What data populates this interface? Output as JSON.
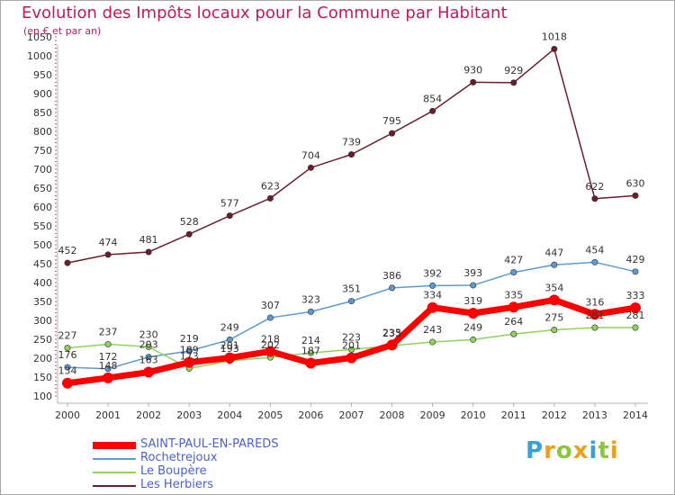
{
  "title": "Evolution des Impôts locaux pour la Commune par Habitant",
  "subtitle": "(en € et par an)",
  "logo": {
    "text": "Proxiti",
    "letters": [
      {
        "ch": "P",
        "color": "#3aa0d8"
      },
      {
        "ch": "r",
        "color": "#e8a020"
      },
      {
        "ch": "o",
        "color": "#8cc63f"
      },
      {
        "ch": "x",
        "color": "#e8a020"
      },
      {
        "ch": "i",
        "color": "#3aa0d8"
      },
      {
        "ch": "t",
        "color": "#8cc63f"
      },
      {
        "ch": "i",
        "color": "#e8a020"
      }
    ]
  },
  "legend": [
    {
      "label": "SAINT-PAUL-EN-PAREDS",
      "color": "#ff0000"
    },
    {
      "label": "Rochetrejoux",
      "color": "#5b9bd5"
    },
    {
      "label": "Le Boupère",
      "color": "#8fd45a"
    },
    {
      "label": "Les Herbiers",
      "color": "#6b1e2a"
    }
  ],
  "chart_data": {
    "type": "line",
    "title": "Evolution des Impôts locaux pour la Commune par Habitant",
    "subtitle": "(en € et par an)",
    "x": [
      "2000",
      "2001",
      "2002",
      "2003",
      "2004",
      "2005",
      "2006",
      "2007",
      "2008",
      "2009",
      "2010",
      "2011",
      "2012",
      "2013",
      "2014"
    ],
    "ylim": [
      100,
      1050
    ],
    "yticks": [
      100,
      150,
      200,
      250,
      300,
      350,
      400,
      450,
      500,
      550,
      600,
      650,
      700,
      750,
      800,
      850,
      900,
      950,
      1000,
      1050
    ],
    "grid": false,
    "legend_position": "bottom-left",
    "series": [
      {
        "name": "Les Herbiers",
        "color": "#6b1e2a",
        "values": [
          452,
          474,
          481,
          528,
          577,
          623,
          704,
          739,
          795,
          854,
          930,
          929,
          1018,
          622,
          630
        ]
      },
      {
        "name": "Rochetrejoux",
        "color": "#5b9bd5",
        "values": [
          176,
          172,
          203,
          219,
          249,
          307,
          323,
          351,
          386,
          392,
          393,
          427,
          447,
          454,
          429
        ]
      },
      {
        "name": "Le Boupère",
        "color": "#8fd45a",
        "values": [
          227,
          237,
          230,
          173,
          193,
          202,
          214,
          223,
          233,
          243,
          249,
          264,
          275,
          281,
          281
        ]
      },
      {
        "name": "SAINT-PAUL-EN-PAREDS",
        "color": "#ff0000",
        "values": [
          134,
          148,
          163,
          189,
          201,
          218,
          187,
          201,
          235,
          334,
          319,
          335,
          354,
          316,
          333
        ]
      }
    ]
  }
}
